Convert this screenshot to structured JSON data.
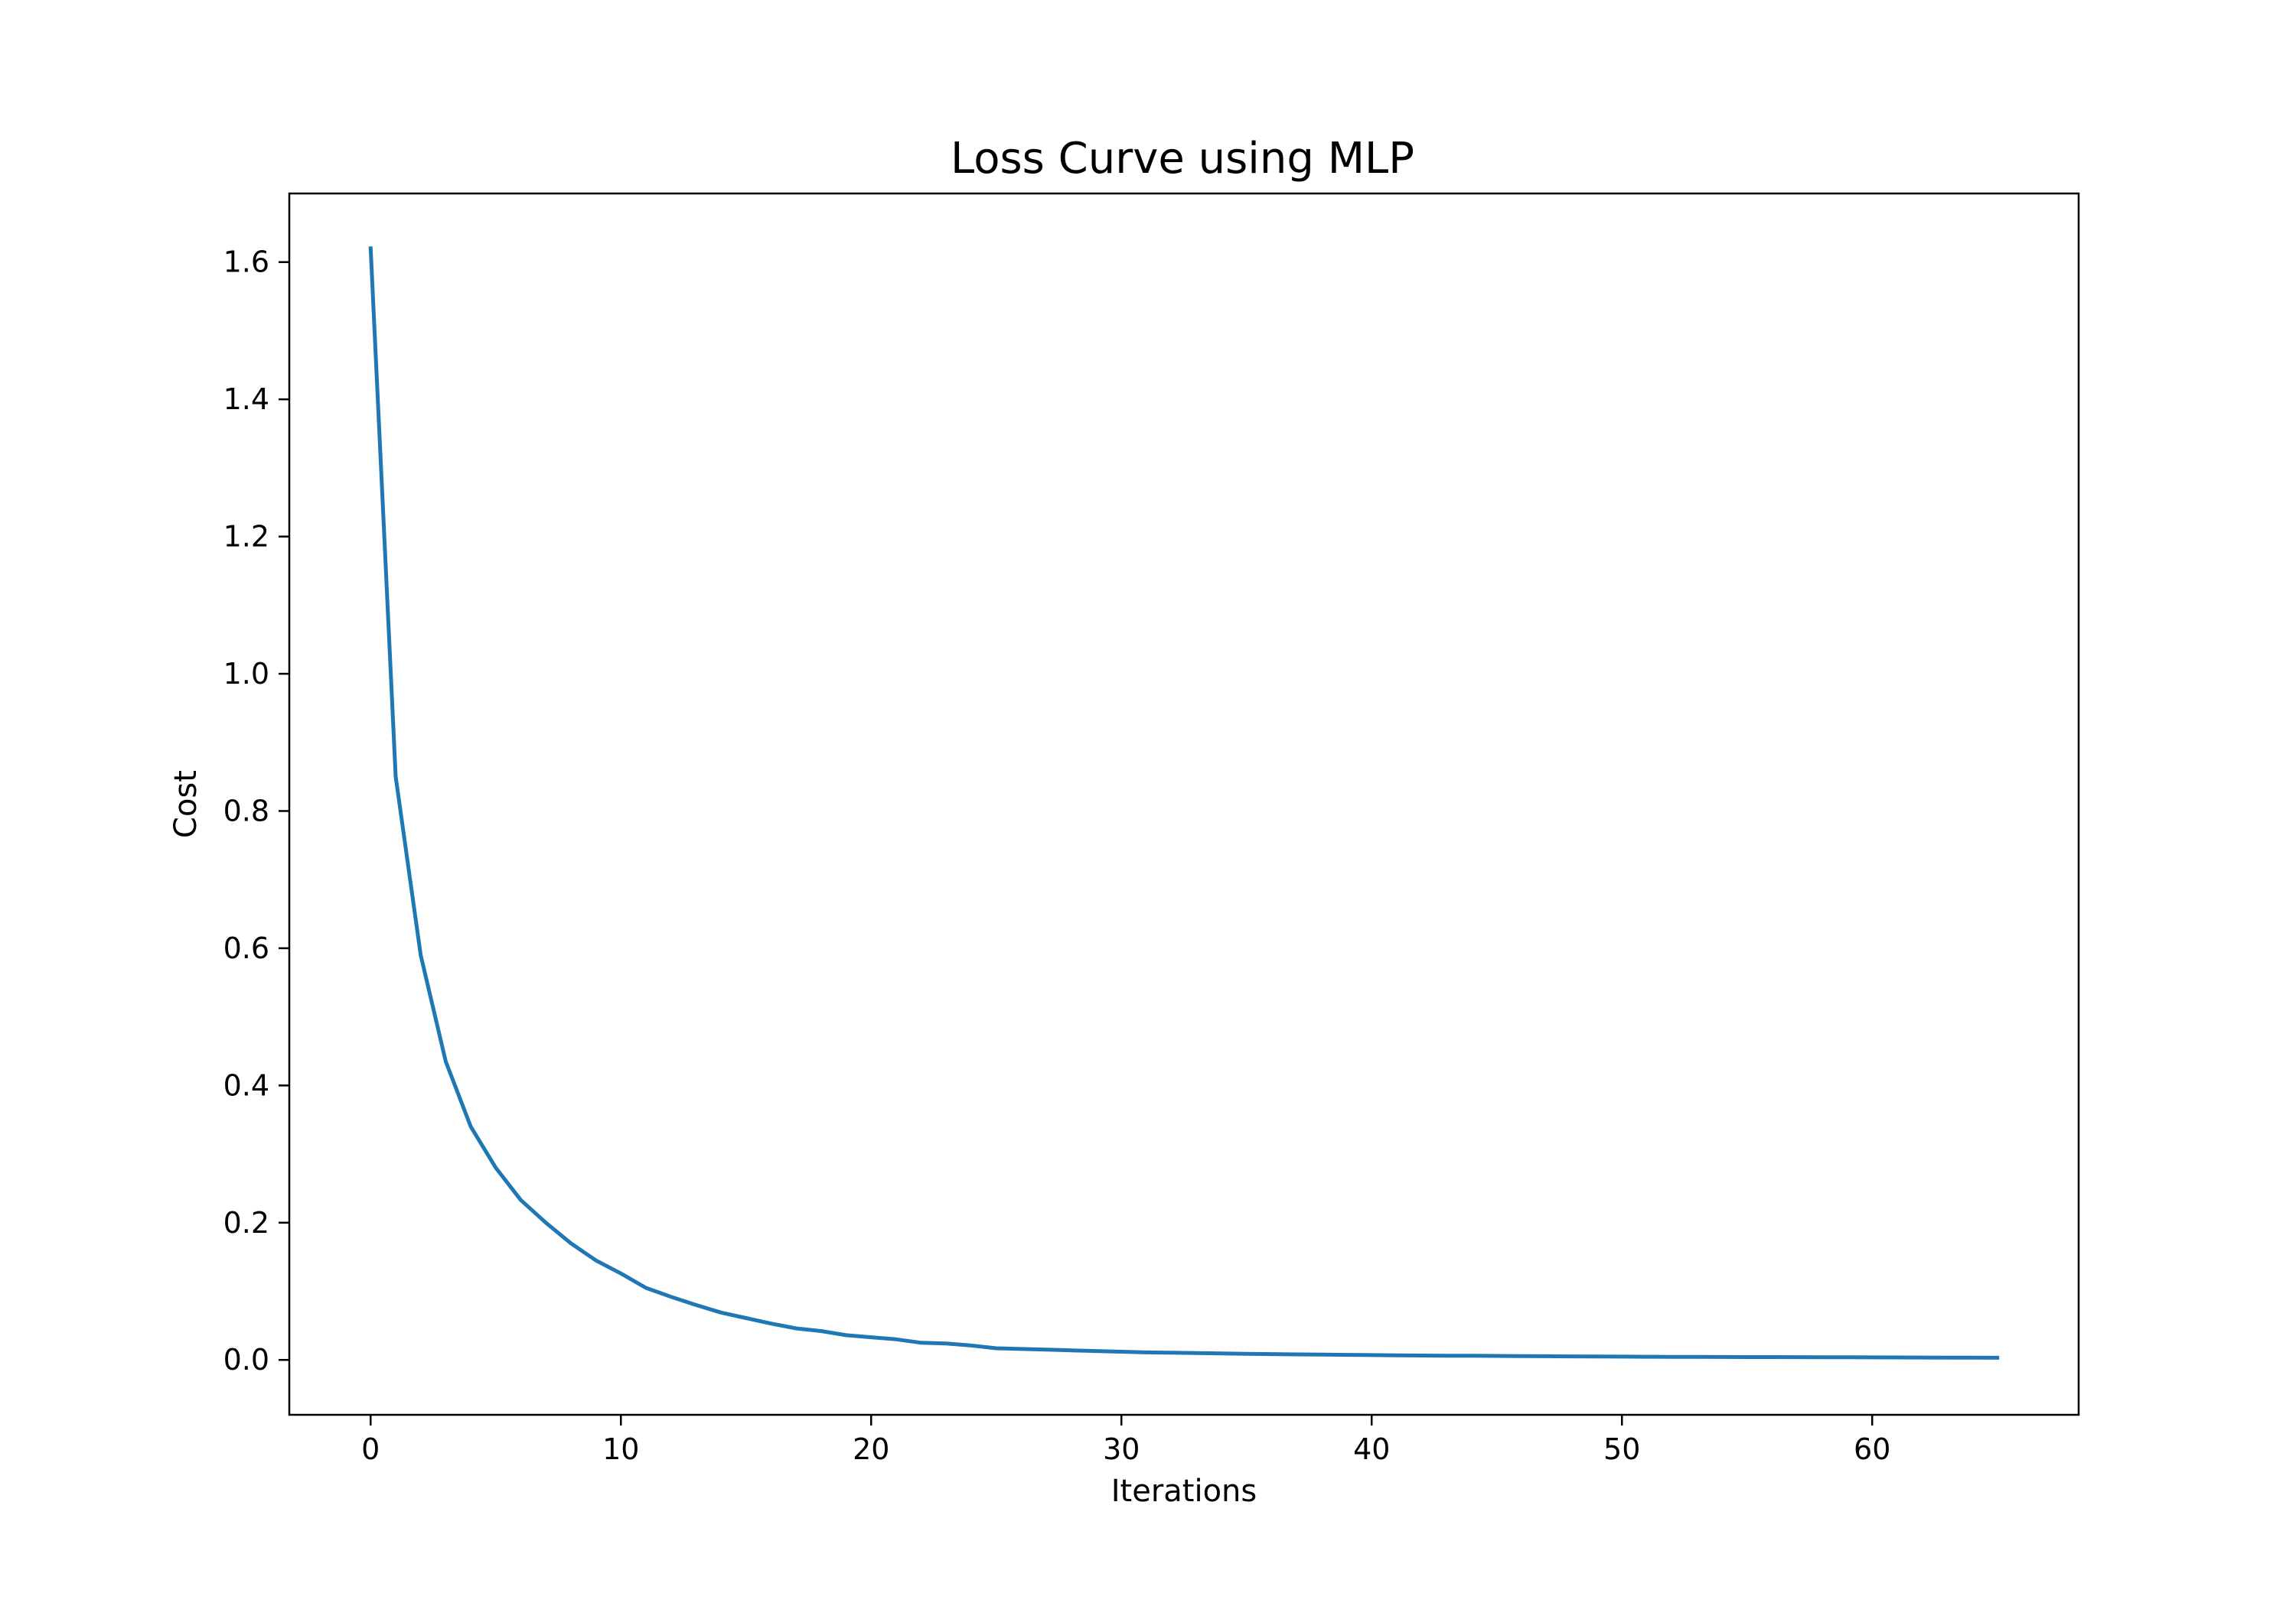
{
  "chart_data": {
    "type": "line",
    "title": "Loss Curve using MLP",
    "xlabel": "Iterations",
    "ylabel": "Cost",
    "xlim": [
      -3.25,
      68.25
    ],
    "ylim": [
      -0.08,
      1.7
    ],
    "xticks": [
      0,
      10,
      20,
      30,
      40,
      50,
      60
    ],
    "yticks": [
      0.0,
      0.2,
      0.4,
      0.6,
      0.8,
      1.0,
      1.2,
      1.4,
      1.6
    ],
    "ytick_labels": [
      "0.0",
      "0.2",
      "0.4",
      "0.6",
      "0.8",
      "1.0",
      "1.2",
      "1.4",
      "1.6"
    ],
    "grid": false,
    "legend": "none",
    "series": [
      {
        "color": "#1f77b4",
        "x": [
          0,
          1,
          2,
          3,
          4,
          5,
          6,
          7,
          8,
          9,
          10,
          11,
          12,
          13,
          14,
          15,
          16,
          17,
          18,
          19,
          20,
          21,
          22,
          23,
          24,
          25,
          26,
          27,
          28,
          29,
          30,
          31,
          32,
          33,
          34,
          35,
          36,
          37,
          38,
          39,
          40,
          41,
          42,
          43,
          44,
          45,
          46,
          47,
          48,
          49,
          50,
          51,
          52,
          53,
          54,
          55,
          56,
          57,
          58,
          59,
          60,
          61,
          62,
          63,
          64,
          65
        ],
        "y": [
          1.62,
          0.85,
          0.59,
          0.435,
          0.34,
          0.28,
          0.233,
          0.2,
          0.17,
          0.145,
          0.126,
          0.105,
          0.092,
          0.08,
          0.069,
          0.061,
          0.053,
          0.046,
          0.042,
          0.036,
          0.033,
          0.03,
          0.025,
          0.024,
          0.021,
          0.017,
          0.016,
          0.015,
          0.014,
          0.013,
          0.012,
          0.011,
          0.0105,
          0.01,
          0.0095,
          0.009,
          0.0085,
          0.008,
          0.0077,
          0.0074,
          0.007,
          0.0067,
          0.0064,
          0.0062,
          0.006,
          0.0058,
          0.0056,
          0.0054,
          0.0052,
          0.005,
          0.0048,
          0.0046,
          0.0045,
          0.0044,
          0.0043,
          0.0042,
          0.0041,
          0.004,
          0.0039,
          0.0038,
          0.0037,
          0.0036,
          0.0035,
          0.0034,
          0.0033,
          0.0032
        ]
      }
    ]
  }
}
